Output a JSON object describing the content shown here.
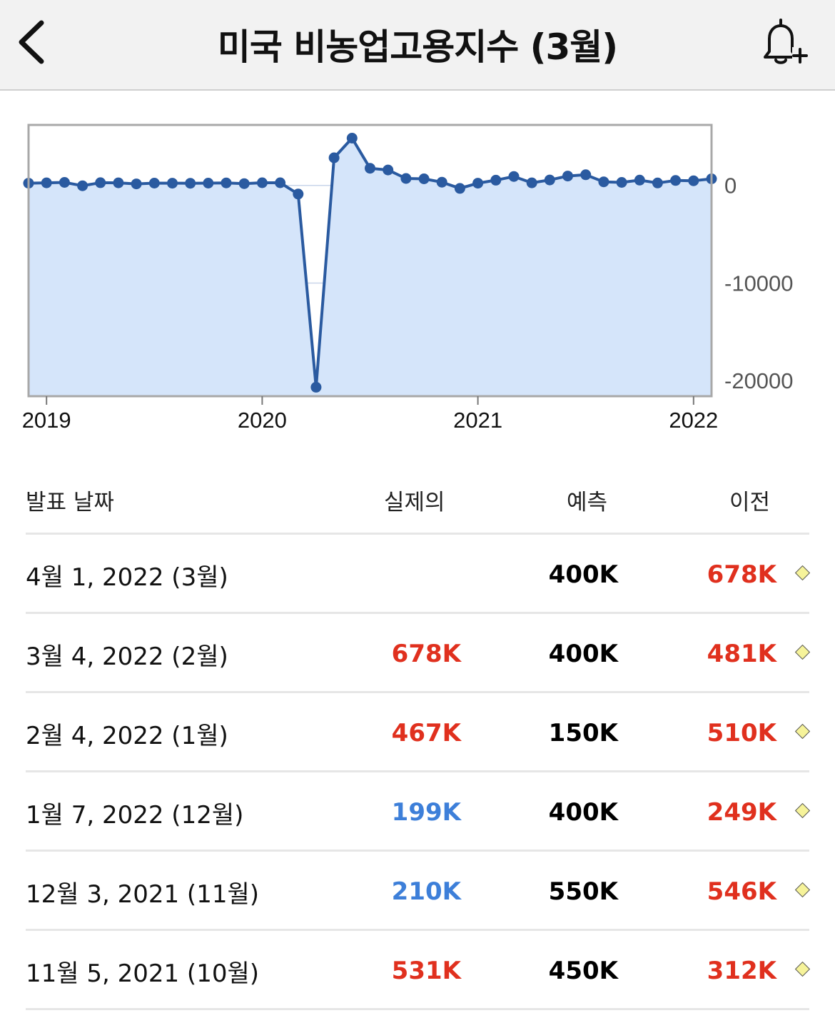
{
  "header": {
    "title": "미국 비농업고용지수 (3월)",
    "back_icon": "chevron-left-icon",
    "alert_icon": "bell-plus-icon"
  },
  "chart_data": {
    "type": "area",
    "title": "",
    "xlabel": "",
    "ylabel": "",
    "x_tick_labels": [
      "2019",
      "2020",
      "2021",
      "2022"
    ],
    "y_tick_labels": [
      "0",
      "-10000",
      "-20000"
    ],
    "ylim": [
      -21600,
      6200
    ],
    "y_axis_position": "right",
    "grid": true,
    "line_color": "#2a5aa0",
    "fill_color": "#d5e5fa",
    "series": [
      {
        "x": [
          "2018-12",
          "2019-01",
          "2019-02",
          "2019-03",
          "2019-04",
          "2019-05",
          "2019-06",
          "2019-07",
          "2019-08",
          "2019-09",
          "2019-10",
          "2019-11",
          "2019-12",
          "2020-01",
          "2020-02",
          "2020-03",
          "2020-04",
          "2020-05",
          "2020-06",
          "2020-07",
          "2020-08",
          "2020-09",
          "2020-10",
          "2020-11",
          "2020-12",
          "2021-01",
          "2021-02",
          "2021-03",
          "2021-04",
          "2021-05",
          "2021-06",
          "2021-07",
          "2021-08",
          "2021-09",
          "2021-10",
          "2021-11",
          "2021-12",
          "2022-01",
          "2022-02"
        ],
        "values": [
          227,
          268,
          312,
          -30,
          280,
          270,
          160,
          240,
          230,
          222,
          240,
          256,
          184,
          273,
          275,
          -881,
          -20679,
          2833,
          4846,
          1761,
          1583,
          716,
          680,
          336,
          -306,
          233,
          536,
          916,
          266,
          559,
          962,
          1091,
          366,
          312,
          546,
          249,
          510,
          481,
          678
        ]
      }
    ]
  },
  "table": {
    "headers": {
      "date": "발표 날짜",
      "actual": "실제의",
      "forecast": "예측",
      "previous": "이전"
    },
    "rows": [
      {
        "date": "4월 1, 2022 (3월)",
        "actual": "",
        "actual_color": "#e0301e",
        "forecast": "400K",
        "previous": "678K",
        "previous_color": "#e0301e"
      },
      {
        "date": "3월 4, 2022 (2월)",
        "actual": "678K",
        "actual_color": "#e0301e",
        "forecast": "400K",
        "previous": "481K",
        "previous_color": "#e0301e"
      },
      {
        "date": "2월 4, 2022 (1월)",
        "actual": "467K",
        "actual_color": "#e0301e",
        "forecast": "150K",
        "previous": "510K",
        "previous_color": "#e0301e"
      },
      {
        "date": "1월 7, 2022 (12월)",
        "actual": "199K",
        "actual_color": "#3d7fd9",
        "forecast": "400K",
        "previous": "249K",
        "previous_color": "#e0301e"
      },
      {
        "date": "12월 3, 2021 (11월)",
        "actual": "210K",
        "actual_color": "#3d7fd9",
        "forecast": "550K",
        "previous": "546K",
        "previous_color": "#e0301e"
      },
      {
        "date": "11월 5, 2021 (10월)",
        "actual": "531K",
        "actual_color": "#e0301e",
        "forecast": "450K",
        "previous": "312K",
        "previous_color": "#e0301e"
      }
    ]
  }
}
